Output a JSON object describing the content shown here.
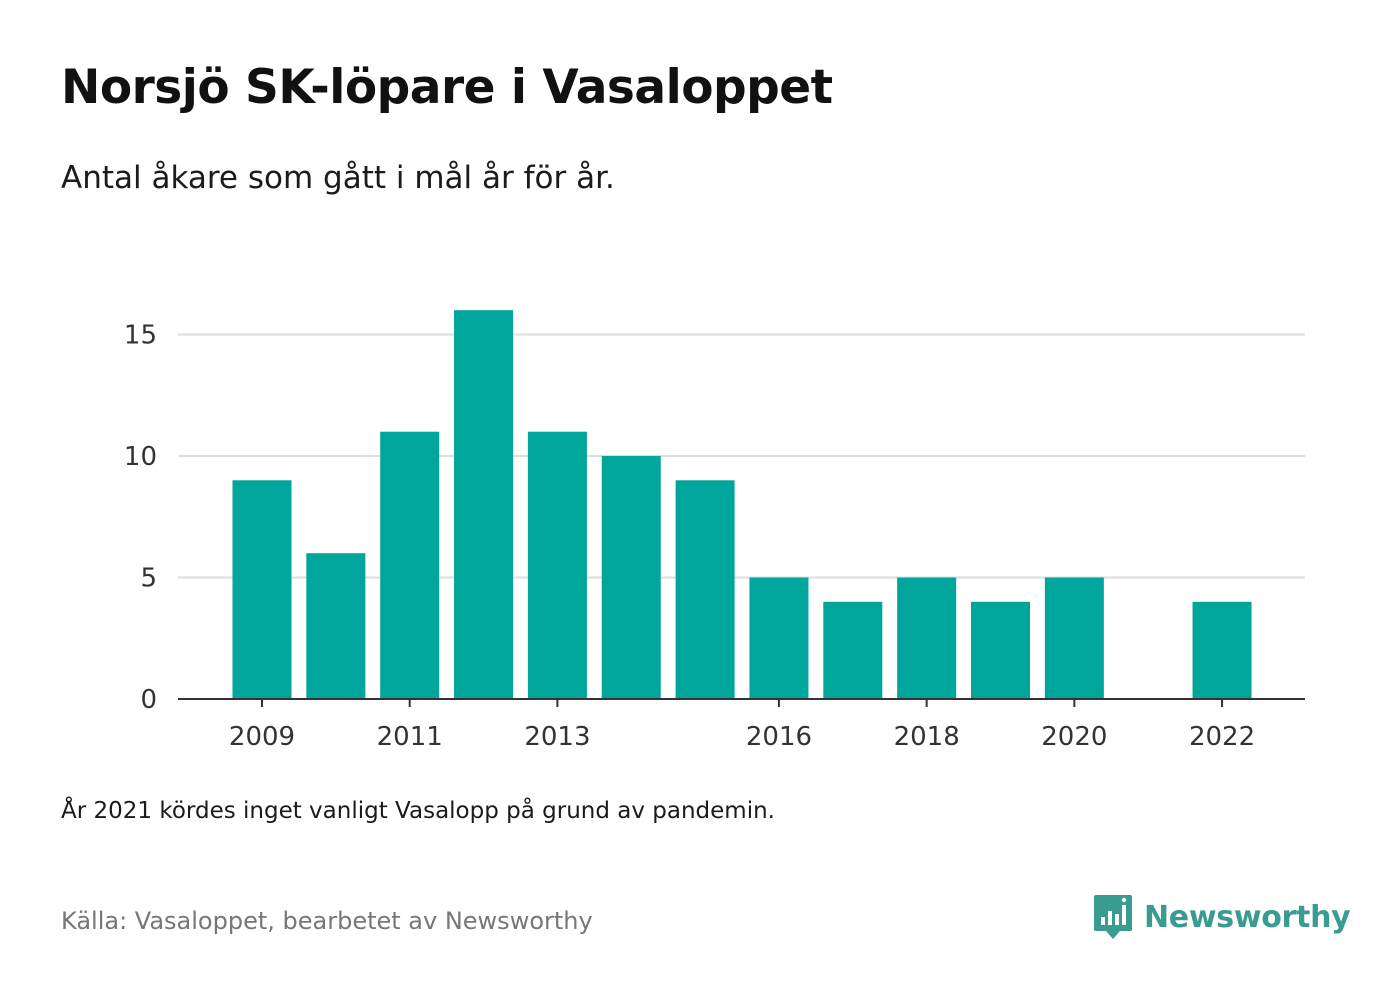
{
  "title": "Norsjö SK-löpare i Vasaloppet",
  "subtitle": "Antal åkare som gått i mål år för år.",
  "note": "År 2021 kördes inget vanligt Vasalopp på grund av pandemin.",
  "source": "Källa: Vasaloppet, bearbetet av Newsworthy",
  "brand": {
    "name": "Newsworthy",
    "icon": "newsworthy-logo-icon"
  },
  "colors": {
    "bar": "#00a59b",
    "brand": "#3a9b91",
    "grid": "#dddddd",
    "axis": "#333333"
  },
  "chart_data": {
    "type": "bar",
    "categories": [
      "2009",
      "2010",
      "2011",
      "2012",
      "2013",
      "2014",
      "2015",
      "2016",
      "2017",
      "2018",
      "2019",
      "2020",
      "2021",
      "2022"
    ],
    "values": [
      9,
      6,
      11,
      16,
      11,
      10,
      9,
      5,
      4,
      5,
      4,
      5,
      null,
      4
    ],
    "x_tick_labels": [
      "2009",
      "2011",
      "2013",
      "2016",
      "2018",
      "2020",
      "2022"
    ],
    "y_ticks": [
      0,
      5,
      10,
      15
    ],
    "ylim": [
      0,
      16
    ],
    "grid": true,
    "xlabel": "",
    "ylabel": ""
  }
}
